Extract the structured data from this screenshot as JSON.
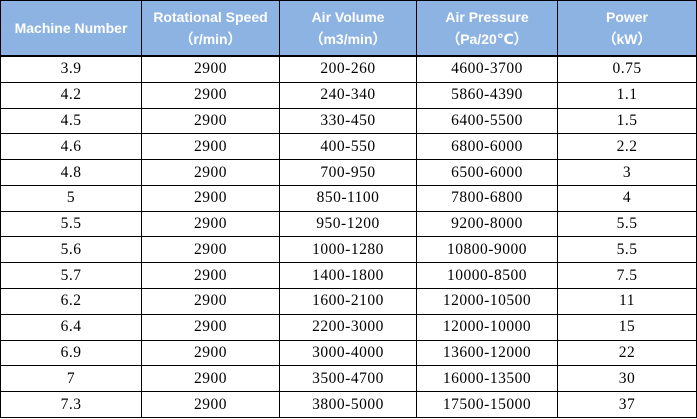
{
  "table": {
    "columns": [
      {
        "title": "Machine Number",
        "unit": ""
      },
      {
        "title": "Rotational Speed",
        "unit": "（r/min）"
      },
      {
        "title": "Air Volume",
        "unit": "（m3/min）"
      },
      {
        "title": "Air Pressure",
        "unit": "（Pa/20℃）"
      },
      {
        "title": "Power",
        "unit": "（kW）"
      }
    ],
    "rows": [
      [
        "3.9",
        "2900",
        "200-260",
        "4600-3700",
        "0.75"
      ],
      [
        "4.2",
        "2900",
        "240-340",
        "5860-4390",
        "1.1"
      ],
      [
        "4.5",
        "2900",
        "330-450",
        "6400-5500",
        "1.5"
      ],
      [
        "4.6",
        "2900",
        "400-550",
        "6800-6000",
        "2.2"
      ],
      [
        "4.8",
        "2900",
        "700-950",
        "6500-6000",
        "3"
      ],
      [
        "5",
        "2900",
        "850-1100",
        "7800-6800",
        "4"
      ],
      [
        "5.5",
        "2900",
        "950-1200",
        "9200-8000",
        "5.5"
      ],
      [
        "5.6",
        "2900",
        "1000-1280",
        "10800-9000",
        "5.5"
      ],
      [
        "5.7",
        "2900",
        "1400-1800",
        "10000-8500",
        "7.5"
      ],
      [
        "6.2",
        "2900",
        "1600-2100",
        "12000-10500",
        "11"
      ],
      [
        "6.4",
        "2900",
        "2200-3000",
        "12000-10000",
        "15"
      ],
      [
        "6.9",
        "2900",
        "3000-4000",
        "13600-12000",
        "22"
      ],
      [
        "7",
        "2900",
        "3500-4700",
        "16000-13500",
        "30"
      ],
      [
        "7.3",
        "2900",
        "3800-5000",
        "17500-15000",
        "37"
      ]
    ]
  },
  "colors": {
    "header_background": "#8db3e2",
    "header_text": "#ffffff",
    "border": "#000000",
    "body_text": "#000000"
  }
}
